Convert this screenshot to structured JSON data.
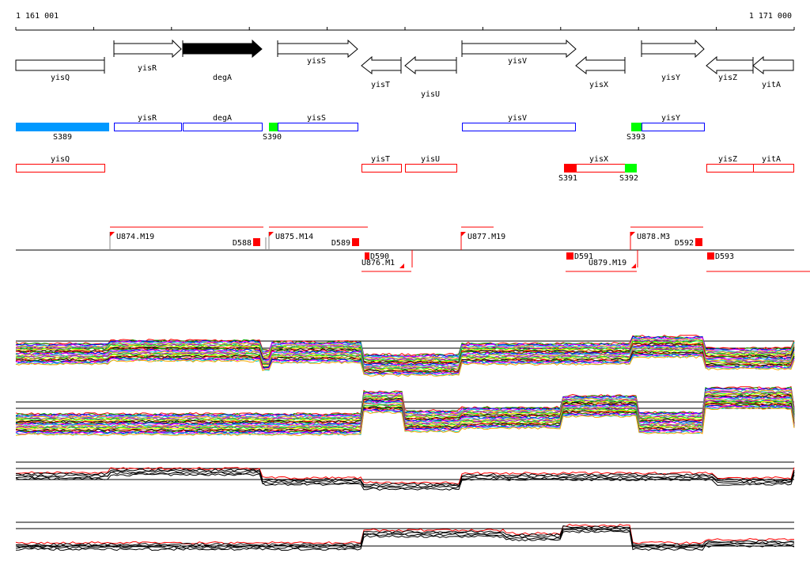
{
  "ruler": {
    "start_label": "1 161 001",
    "end_label": "1 171 000"
  },
  "annotation_genes": [
    {
      "name": "yisQ",
      "strand": "none"
    },
    {
      "name": "yisR",
      "strand": "+"
    },
    {
      "name": "degA",
      "strand": "+",
      "highlighted": true
    },
    {
      "name": "yisS",
      "strand": "+"
    },
    {
      "name": "yisT",
      "strand": "-"
    },
    {
      "name": "yisU",
      "strand": "-"
    },
    {
      "name": "yisV",
      "strand": "+"
    },
    {
      "name": "yisX",
      "strand": "-"
    },
    {
      "name": "yisY",
      "strand": "+"
    },
    {
      "name": "yisZ",
      "strand": "-"
    },
    {
      "name": "yitA",
      "strand": "-"
    }
  ],
  "forward_segments": {
    "genes": [
      "yisR",
      "degA",
      "yisS",
      "yisV",
      "yisY"
    ],
    "sites": [
      "S389",
      "S390",
      "S393"
    ]
  },
  "reverse_segments": {
    "genes": [
      "yisQ",
      "yisT",
      "yisU",
      "yisX",
      "yisZ",
      "yitA"
    ],
    "sites": [
      "S391",
      "S392"
    ]
  },
  "transcription_units": {
    "upstream": [
      "U874.M19",
      "U875.M14",
      "U876.M1",
      "U877.M19",
      "U878.M3",
      "U879.M19"
    ],
    "downstream": [
      "D588",
      "D589",
      "D590",
      "D591",
      "D592",
      "D593"
    ]
  },
  "colors": {
    "forward": "#0000ff",
    "reverse": "#ff0000",
    "site_cyan": "#0099ff",
    "site_green": "#00ff00",
    "site_red": "#ff0000"
  }
}
